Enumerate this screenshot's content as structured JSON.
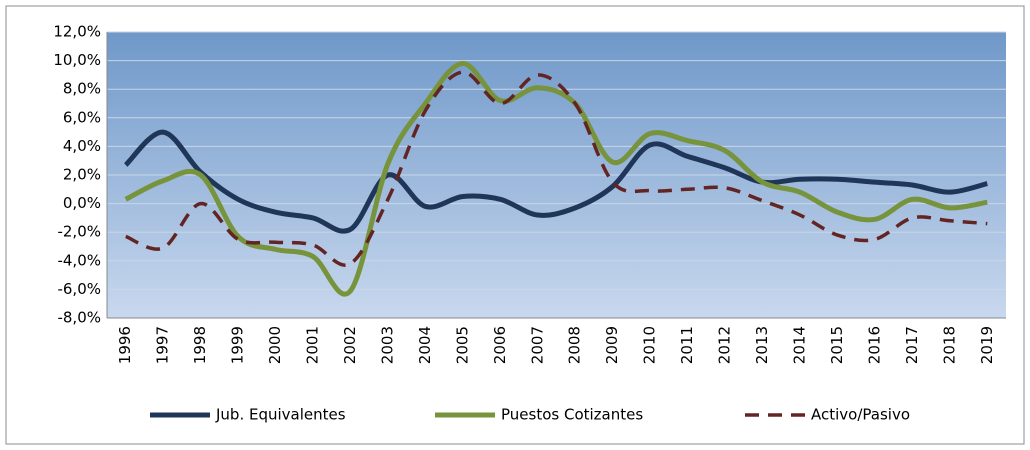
{
  "chart_data": {
    "type": "line",
    "categories": [
      "1996",
      "1997",
      "1998",
      "1999",
      "2000",
      "2001",
      "2002",
      "2003",
      "2004",
      "2005",
      "2006",
      "2007",
      "2008",
      "2009",
      "2010",
      "2011",
      "2012",
      "2013",
      "2014",
      "2015",
      "2016",
      "2017",
      "2018",
      "2019"
    ],
    "series": [
      {
        "name": "Jub. Equivalentes",
        "color": "#1f3658",
        "dash": false,
        "values": [
          2.7,
          5.0,
          2.2,
          0.3,
          -0.6,
          -1.0,
          -1.8,
          2.0,
          -0.2,
          0.5,
          0.3,
          -0.8,
          -0.3,
          1.2,
          4.1,
          3.3,
          2.5,
          1.5,
          1.7,
          1.7,
          1.5,
          1.3,
          0.8,
          1.4
        ]
      },
      {
        "name": "Puestos Cotizantes",
        "color": "#77933c",
        "dash": false,
        "values": [
          0.3,
          1.6,
          2.0,
          -2.3,
          -3.2,
          -3.7,
          -6.1,
          2.8,
          7.0,
          9.8,
          7.2,
          8.1,
          7.0,
          2.9,
          4.9,
          4.4,
          3.7,
          1.5,
          0.8,
          -0.6,
          -1.1,
          0.3,
          -0.3,
          0.1
        ]
      },
      {
        "name": "Activo/Pasivo",
        "color": "#632523",
        "dash": true,
        "values": [
          -2.3,
          -3.1,
          0.0,
          -2.5,
          -2.7,
          -2.9,
          -4.2,
          0.3,
          6.5,
          9.2,
          7.0,
          9.0,
          7.0,
          1.5,
          0.9,
          1.0,
          1.1,
          0.2,
          -0.8,
          -2.2,
          -2.5,
          -1.0,
          -1.2,
          -1.4
        ]
      }
    ],
    "ylim": [
      -8,
      12
    ],
    "yticks": [
      {
        "value": 12,
        "label": "12,0%"
      },
      {
        "value": 10,
        "label": "10,0%"
      },
      {
        "value": 8,
        "label": "8,0%"
      },
      {
        "value": 6,
        "label": "6,0%"
      },
      {
        "value": 4,
        "label": "4,0%"
      },
      {
        "value": 2,
        "label": "2,0%"
      },
      {
        "value": 0,
        "label": "0,0%"
      },
      {
        "value": -2,
        "label": "-2,0%"
      },
      {
        "value": -4,
        "label": "-4,0%"
      },
      {
        "value": -6,
        "label": "-6,0%"
      },
      {
        "value": -8,
        "label": "-8,0%"
      }
    ],
    "grid": true,
    "legend": "bottom"
  }
}
